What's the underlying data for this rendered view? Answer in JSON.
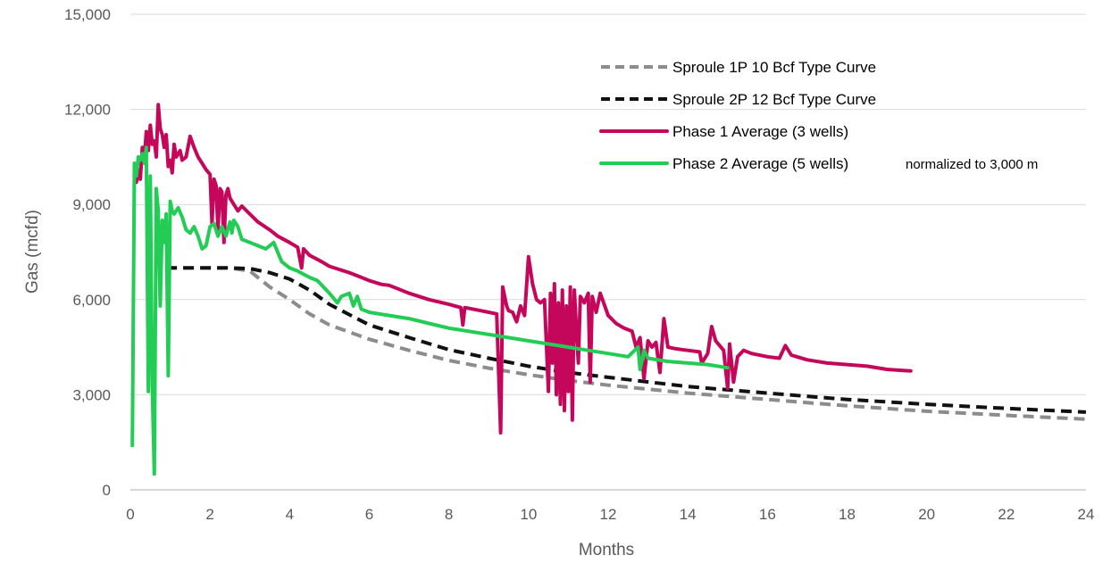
{
  "chart_data": {
    "type": "line",
    "xlabel": "Months",
    "ylabel": "Gas (mcfd)",
    "xlim": [
      0,
      24
    ],
    "ylim": [
      0,
      15000
    ],
    "xticks": [
      "0",
      "2",
      "4",
      "6",
      "8",
      "10",
      "12",
      "14",
      "16",
      "18",
      "20",
      "22",
      "24"
    ],
    "yticks": [
      "0",
      "3,000",
      "6,000",
      "9,000",
      "12,000",
      "15,000"
    ],
    "grid": "horizontal",
    "legend_position": "top-right",
    "legend_note": "normalized to 3,000 m",
    "colors": {
      "sproule_1p": "#8c8c8c",
      "sproule_2p": "#111111",
      "phase1": "#c4075a",
      "phase2": "#22cc55",
      "grid": "#d9d9d9",
      "axis": "#bfbfbf"
    },
    "series": [
      {
        "name": "Sproule 1P 10 Bcf Type Curve",
        "style": "dashed",
        "points": [
          [
            0.9,
            7000
          ],
          [
            1.5,
            7000
          ],
          [
            2.5,
            7000
          ],
          [
            3.0,
            6900
          ],
          [
            3.5,
            6400
          ],
          [
            4.0,
            6000
          ],
          [
            4.5,
            5550
          ],
          [
            5.0,
            5200
          ],
          [
            6.0,
            4750
          ],
          [
            7.0,
            4400
          ],
          [
            8.0,
            4080
          ],
          [
            9.0,
            3840
          ],
          [
            10.0,
            3630
          ],
          [
            11.0,
            3450
          ],
          [
            12.0,
            3300
          ],
          [
            14.0,
            3050
          ],
          [
            16.0,
            2850
          ],
          [
            18.0,
            2650
          ],
          [
            20.0,
            2480
          ],
          [
            22.0,
            2350
          ],
          [
            24.0,
            2230
          ]
        ]
      },
      {
        "name": "Sproule 2P 12 Bcf Type Curve",
        "style": "dashed",
        "points": [
          [
            0.9,
            7000
          ],
          [
            1.5,
            7000
          ],
          [
            2.5,
            7000
          ],
          [
            3.0,
            6980
          ],
          [
            3.5,
            6850
          ],
          [
            4.0,
            6650
          ],
          [
            4.5,
            6300
          ],
          [
            5.0,
            5850
          ],
          [
            6.0,
            5200
          ],
          [
            7.0,
            4800
          ],
          [
            8.0,
            4420
          ],
          [
            9.0,
            4150
          ],
          [
            10.0,
            3900
          ],
          [
            11.0,
            3700
          ],
          [
            12.0,
            3550
          ],
          [
            14.0,
            3260
          ],
          [
            16.0,
            3050
          ],
          [
            18.0,
            2850
          ],
          [
            20.0,
            2700
          ],
          [
            22.0,
            2570
          ],
          [
            24.0,
            2450
          ]
        ]
      },
      {
        "name": "Phase 1 Average (3 wells)",
        "style": "solid",
        "points": [
          [
            0.15,
            9700
          ],
          [
            0.2,
            10100
          ],
          [
            0.25,
            9800
          ],
          [
            0.3,
            10800
          ],
          [
            0.35,
            10400
          ],
          [
            0.4,
            11300
          ],
          [
            0.45,
            10700
          ],
          [
            0.5,
            11500
          ],
          [
            0.55,
            10900
          ],
          [
            0.6,
            11000
          ],
          [
            0.65,
            10500
          ],
          [
            0.7,
            12150
          ],
          [
            0.75,
            11400
          ],
          [
            0.8,
            11200
          ],
          [
            0.85,
            10800
          ],
          [
            0.9,
            11200
          ],
          [
            0.95,
            10200
          ],
          [
            1.0,
            10400
          ],
          [
            1.05,
            10000
          ],
          [
            1.1,
            10900
          ],
          [
            1.15,
            10500
          ],
          [
            1.25,
            10700
          ],
          [
            1.3,
            10400
          ],
          [
            1.4,
            10500
          ],
          [
            1.5,
            11150
          ],
          [
            1.6,
            10800
          ],
          [
            1.7,
            10500
          ],
          [
            1.8,
            10300
          ],
          [
            1.9,
            10100
          ],
          [
            2.0,
            9950
          ],
          [
            2.05,
            8400
          ],
          [
            2.1,
            9800
          ],
          [
            2.15,
            9600
          ],
          [
            2.2,
            8200
          ],
          [
            2.25,
            9500
          ],
          [
            2.3,
            9400
          ],
          [
            2.35,
            7800
          ],
          [
            2.4,
            9300
          ],
          [
            2.45,
            9500
          ],
          [
            2.5,
            9200
          ],
          [
            2.6,
            9000
          ],
          [
            2.7,
            8800
          ],
          [
            2.8,
            8950
          ],
          [
            3.0,
            8700
          ],
          [
            3.2,
            8450
          ],
          [
            3.5,
            8200
          ],
          [
            3.7,
            8000
          ],
          [
            4.0,
            7800
          ],
          [
            4.2,
            7650
          ],
          [
            4.3,
            7000
          ],
          [
            4.35,
            7600
          ],
          [
            4.5,
            7400
          ],
          [
            4.8,
            7200
          ],
          [
            5.0,
            7050
          ],
          [
            5.5,
            6850
          ],
          [
            5.8,
            6700
          ],
          [
            6.0,
            6600
          ],
          [
            6.3,
            6480
          ],
          [
            6.5,
            6450
          ],
          [
            7.0,
            6200
          ],
          [
            7.5,
            6000
          ],
          [
            8.0,
            5850
          ],
          [
            8.3,
            5750
          ],
          [
            8.35,
            5200
          ],
          [
            8.4,
            5750
          ],
          [
            8.8,
            5650
          ],
          [
            9.0,
            5600
          ],
          [
            9.2,
            5550
          ],
          [
            9.3,
            1800
          ],
          [
            9.35,
            6400
          ],
          [
            9.45,
            5800
          ],
          [
            9.5,
            5650
          ],
          [
            9.6,
            5600
          ],
          [
            9.7,
            5300
          ],
          [
            9.8,
            5800
          ],
          [
            9.9,
            5500
          ],
          [
            10.0,
            7350
          ],
          [
            10.1,
            6500
          ],
          [
            10.2,
            6000
          ],
          [
            10.3,
            5900
          ],
          [
            10.4,
            6000
          ],
          [
            10.5,
            3100
          ],
          [
            10.55,
            6200
          ],
          [
            10.6,
            4000
          ],
          [
            10.65,
            6500
          ],
          [
            10.7,
            3000
          ],
          [
            10.75,
            5900
          ],
          [
            10.8,
            2700
          ],
          [
            10.85,
            6300
          ],
          [
            10.9,
            2500
          ],
          [
            10.95,
            5800
          ],
          [
            11.0,
            3100
          ],
          [
            11.05,
            6400
          ],
          [
            11.1,
            2200
          ],
          [
            11.15,
            6300
          ],
          [
            11.25,
            4000
          ],
          [
            11.3,
            6100
          ],
          [
            11.4,
            5900
          ],
          [
            11.5,
            6200
          ],
          [
            11.55,
            3400
          ],
          [
            11.6,
            6100
          ],
          [
            11.7,
            5600
          ],
          [
            11.8,
            6200
          ],
          [
            12.0,
            5500
          ],
          [
            12.2,
            5250
          ],
          [
            12.4,
            5100
          ],
          [
            12.6,
            5000
          ],
          [
            12.7,
            4500
          ],
          [
            12.8,
            4800
          ],
          [
            12.9,
            3500
          ],
          [
            13.0,
            4700
          ],
          [
            13.1,
            4500
          ],
          [
            13.2,
            4650
          ],
          [
            13.3,
            3700
          ],
          [
            13.4,
            5400
          ],
          [
            13.5,
            4500
          ],
          [
            13.7,
            4450
          ],
          [
            14.0,
            4400
          ],
          [
            14.3,
            4350
          ],
          [
            14.35,
            4000
          ],
          [
            14.5,
            4300
          ],
          [
            14.6,
            5150
          ],
          [
            14.7,
            4700
          ],
          [
            14.8,
            4550
          ],
          [
            14.9,
            4400
          ],
          [
            15.0,
            3200
          ],
          [
            15.05,
            4600
          ],
          [
            15.15,
            3400
          ],
          [
            15.25,
            4200
          ],
          [
            15.4,
            4400
          ],
          [
            15.6,
            4300
          ],
          [
            16.0,
            4200
          ],
          [
            16.3,
            4150
          ],
          [
            16.45,
            4550
          ],
          [
            16.6,
            4250
          ],
          [
            17.0,
            4100
          ],
          [
            17.5,
            4000
          ],
          [
            18.0,
            3950
          ],
          [
            18.5,
            3900
          ],
          [
            19.0,
            3800
          ],
          [
            19.6,
            3750
          ]
        ]
      },
      {
        "name": "Phase 2 Average (5 wells)",
        "style": "solid",
        "points": [
          [
            0.05,
            1400
          ],
          [
            0.1,
            10300
          ],
          [
            0.15,
            9900
          ],
          [
            0.2,
            10500
          ],
          [
            0.25,
            10400
          ],
          [
            0.3,
            10600
          ],
          [
            0.35,
            10300
          ],
          [
            0.4,
            10800
          ],
          [
            0.45,
            3100
          ],
          [
            0.5,
            9900
          ],
          [
            0.55,
            3300
          ],
          [
            0.6,
            500
          ],
          [
            0.65,
            9500
          ],
          [
            0.7,
            8800
          ],
          [
            0.75,
            5800
          ],
          [
            0.8,
            8500
          ],
          [
            0.85,
            7800
          ],
          [
            0.9,
            8700
          ],
          [
            0.95,
            3600
          ],
          [
            1.0,
            9100
          ],
          [
            1.05,
            8800
          ],
          [
            1.1,
            8700
          ],
          [
            1.2,
            8900
          ],
          [
            1.3,
            8600
          ],
          [
            1.4,
            8200
          ],
          [
            1.5,
            8100
          ],
          [
            1.6,
            8300
          ],
          [
            1.7,
            8000
          ],
          [
            1.8,
            7600
          ],
          [
            1.9,
            7700
          ],
          [
            2.0,
            8300
          ],
          [
            2.1,
            8400
          ],
          [
            2.2,
            8000
          ],
          [
            2.3,
            8300
          ],
          [
            2.4,
            8000
          ],
          [
            2.5,
            8450
          ],
          [
            2.55,
            8100
          ],
          [
            2.6,
            8500
          ],
          [
            2.7,
            8300
          ],
          [
            2.8,
            7900
          ],
          [
            3.0,
            7800
          ],
          [
            3.2,
            7700
          ],
          [
            3.4,
            7600
          ],
          [
            3.6,
            7800
          ],
          [
            3.8,
            7200
          ],
          [
            4.0,
            7000
          ],
          [
            4.2,
            6900
          ],
          [
            4.5,
            6700
          ],
          [
            4.7,
            6600
          ],
          [
            5.0,
            6200
          ],
          [
            5.2,
            5900
          ],
          [
            5.3,
            6100
          ],
          [
            5.5,
            6200
          ],
          [
            5.6,
            5800
          ],
          [
            5.7,
            6100
          ],
          [
            5.8,
            5700
          ],
          [
            6.0,
            5600
          ],
          [
            6.5,
            5500
          ],
          [
            7.0,
            5400
          ],
          [
            7.5,
            5250
          ],
          [
            8.0,
            5100
          ],
          [
            8.5,
            5000
          ],
          [
            9.0,
            4900
          ],
          [
            9.5,
            4800
          ],
          [
            10.0,
            4700
          ],
          [
            10.5,
            4600
          ],
          [
            11.0,
            4500
          ],
          [
            11.5,
            4400
          ],
          [
            12.0,
            4300
          ],
          [
            12.5,
            4200
          ],
          [
            12.75,
            4500
          ],
          [
            12.8,
            3800
          ],
          [
            12.9,
            4400
          ],
          [
            13.0,
            4150
          ],
          [
            13.5,
            4050
          ],
          [
            14.0,
            4000
          ],
          [
            14.5,
            3950
          ],
          [
            15.0,
            3850
          ]
        ]
      }
    ]
  }
}
